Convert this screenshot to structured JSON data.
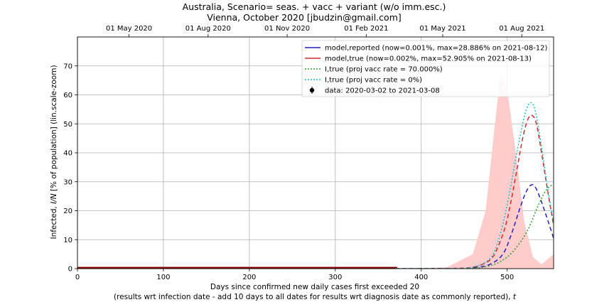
{
  "chart_data": {
    "type": "line",
    "title_line1": "Australia, Scenario= seas. + vacc + variant (w/o imm.esc.)",
    "title_line2": "Vienna, October 2020 [jbudzin@gmail.com]",
    "xlabel_line1": "Days since confirmed new daily cases first exceeded 20",
    "xlabel_line2_prefix": "(results wrt infection date - add 10 days to all dates for results wrt diagnosis date as commonly reported), ",
    "xlabel_line2_var": "t",
    "ylabel_prefix": "Infected, ",
    "ylabel_var": "I/N",
    "ylabel_suffix": " [% of population] (lin.scale-zoom)",
    "xlim": [
      0,
      554
    ],
    "ylim": [
      0,
      80
    ],
    "xticks": [
      0,
      100,
      200,
      300,
      400,
      500
    ],
    "xtick_labels": [
      "0",
      "100",
      "200",
      "300",
      "400",
      "500"
    ],
    "yticks": [
      0,
      10,
      20,
      30,
      40,
      50,
      60,
      70
    ],
    "ytick_labels": [
      "0",
      "10",
      "20",
      "30",
      "40",
      "50",
      "60",
      "70"
    ],
    "top_axis_ticks": [
      60,
      152,
      244,
      336,
      425,
      517
    ],
    "top_axis_labels": [
      "01 May 2020",
      "01 Aug 2020",
      "01 Nov 2020",
      "01 Feb 2021",
      "01 May 2021",
      "01 Aug 2021"
    ],
    "grid": true,
    "legend_position": "top-right",
    "legend": [
      {
        "label": "model,reported (now=0.001%, max=28.886% on 2021-08-12)",
        "color": "#1f1fbf",
        "style": "solid"
      },
      {
        "label": "model,true (now=0.002%, max=52.905% on 2021-08-13)",
        "color": "#d62728",
        "style": "solid"
      },
      {
        "label": "I,true (proj vacc rate = 70.000%)",
        "color": "#2ca02c",
        "style": "dotted"
      },
      {
        "label": "I,true (proj vacc rate = 0%)",
        "color": "#17becf",
        "style": "dotted"
      },
      {
        "label": "data: 2020-03-02 to 2021-03-08",
        "color": "#000000",
        "style": "marker"
      }
    ],
    "data_band": {
      "x": [
        0,
        372
      ],
      "y_low": 0.2,
      "y_high": 0.6,
      "color": "#8b0000"
    },
    "series": [
      {
        "name": "model,reported (now=0.001%, max=28.886% on 2021-08-12)",
        "color": "#1f1fbf",
        "dash": "dashed",
        "x": [
          370,
          430,
          460,
          480,
          495,
          505,
          515,
          522,
          528,
          533,
          540,
          548,
          554
        ],
        "y": [
          0.0,
          0.05,
          0.3,
          1.5,
          5,
          12,
          21,
          26.5,
          28.9,
          28,
          23,
          16,
          10.5
        ]
      },
      {
        "name": "model,true (now=0.002%, max=52.905% on 2021-08-13)",
        "color": "#d62728",
        "dash": "dashed",
        "x": [
          370,
          430,
          460,
          480,
          490,
          500,
          510,
          518,
          524,
          529,
          534,
          540,
          547,
          554
        ],
        "y": [
          0.0,
          0.05,
          0.5,
          3,
          8,
          17,
          32,
          45,
          51.5,
          52.9,
          50,
          40,
          27,
          15
        ]
      },
      {
        "name": "I,true (proj vacc rate = 70.000%)",
        "color": "#2ca02c",
        "dash": "dotted",
        "x": [
          370,
          450,
          480,
          500,
          515,
          525,
          535,
          543,
          550,
          554
        ],
        "y": [
          0.0,
          0.1,
          1,
          4,
          9,
          14,
          21,
          26,
          28.5,
          28.5
        ]
      },
      {
        "name": "I,true (proj vacc rate = 0%)",
        "color": "#17becf",
        "dash": "dotted",
        "x": [
          370,
          430,
          460,
          480,
          490,
          500,
          510,
          518,
          523,
          528,
          533,
          540,
          547,
          554
        ],
        "y": [
          0.0,
          0.05,
          0.5,
          3.5,
          10,
          22,
          38,
          50,
          55.5,
          57.3,
          54,
          42,
          28,
          16
        ]
      },
      {
        "name": "projection band",
        "color": "#ffcccc",
        "dash": "fill",
        "x": [
          380,
          430,
          460,
          475,
          485,
          492,
          500,
          510,
          520,
          530,
          540,
          550,
          554
        ],
        "y": [
          0.0,
          0.5,
          5,
          20,
          48,
          66.5,
          62,
          40,
          16,
          4,
          1.5,
          4,
          5
        ]
      }
    ]
  }
}
